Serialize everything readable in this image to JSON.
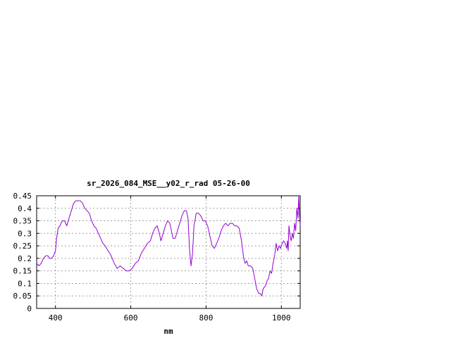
{
  "chart_data": {
    "type": "line",
    "title": "sr_2026_084_MSE__y02_r_rad 05-26-00",
    "xlabel": "nm",
    "ylabel": "",
    "xlim": [
      350,
      1050
    ],
    "ylim": [
      0,
      0.45
    ],
    "x_ticks": [
      400,
      600,
      800,
      1000
    ],
    "y_ticks": [
      0,
      0.05,
      0.1,
      0.15,
      0.2,
      0.25,
      0.3,
      0.35,
      0.4,
      0.45
    ],
    "grid": true,
    "series": [
      {
        "color": "#9400d3",
        "points": [
          [
            350,
            0.18
          ],
          [
            356,
            0.17
          ],
          [
            362,
            0.18
          ],
          [
            368,
            0.2
          ],
          [
            374,
            0.21
          ],
          [
            380,
            0.21
          ],
          [
            385,
            0.2
          ],
          [
            390,
            0.2
          ],
          [
            395,
            0.21
          ],
          [
            400,
            0.23
          ],
          [
            403,
            0.28
          ],
          [
            407,
            0.32
          ],
          [
            412,
            0.33
          ],
          [
            418,
            0.35
          ],
          [
            424,
            0.35
          ],
          [
            430,
            0.33
          ],
          [
            436,
            0.36
          ],
          [
            442,
            0.39
          ],
          [
            448,
            0.42
          ],
          [
            454,
            0.43
          ],
          [
            460,
            0.43
          ],
          [
            466,
            0.43
          ],
          [
            472,
            0.42
          ],
          [
            478,
            0.4
          ],
          [
            484,
            0.39
          ],
          [
            490,
            0.38
          ],
          [
            496,
            0.35
          ],
          [
            502,
            0.33
          ],
          [
            508,
            0.32
          ],
          [
            514,
            0.3
          ],
          [
            520,
            0.28
          ],
          [
            526,
            0.26
          ],
          [
            532,
            0.25
          ],
          [
            540,
            0.23
          ],
          [
            548,
            0.21
          ],
          [
            556,
            0.18
          ],
          [
            564,
            0.16
          ],
          [
            572,
            0.17
          ],
          [
            580,
            0.16
          ],
          [
            588,
            0.15
          ],
          [
            596,
            0.15
          ],
          [
            604,
            0.16
          ],
          [
            612,
            0.18
          ],
          [
            620,
            0.19
          ],
          [
            628,
            0.22
          ],
          [
            636,
            0.24
          ],
          [
            644,
            0.26
          ],
          [
            652,
            0.27
          ],
          [
            658,
            0.3
          ],
          [
            664,
            0.32
          ],
          [
            670,
            0.33
          ],
          [
            676,
            0.3
          ],
          [
            680,
            0.27
          ],
          [
            686,
            0.3
          ],
          [
            692,
            0.33
          ],
          [
            698,
            0.35
          ],
          [
            704,
            0.34
          ],
          [
            708,
            0.31
          ],
          [
            712,
            0.28
          ],
          [
            718,
            0.28
          ],
          [
            724,
            0.31
          ],
          [
            730,
            0.34
          ],
          [
            736,
            0.37
          ],
          [
            742,
            0.39
          ],
          [
            748,
            0.39
          ],
          [
            752,
            0.36
          ],
          [
            756,
            0.24
          ],
          [
            760,
            0.17
          ],
          [
            764,
            0.22
          ],
          [
            768,
            0.33
          ],
          [
            774,
            0.38
          ],
          [
            780,
            0.38
          ],
          [
            786,
            0.37
          ],
          [
            792,
            0.35
          ],
          [
            798,
            0.35
          ],
          [
            804,
            0.33
          ],
          [
            810,
            0.29
          ],
          [
            816,
            0.25
          ],
          [
            822,
            0.24
          ],
          [
            828,
            0.26
          ],
          [
            834,
            0.28
          ],
          [
            840,
            0.31
          ],
          [
            846,
            0.33
          ],
          [
            852,
            0.34
          ],
          [
            858,
            0.33
          ],
          [
            864,
            0.34
          ],
          [
            870,
            0.34
          ],
          [
            876,
            0.33
          ],
          [
            882,
            0.33
          ],
          [
            888,
            0.32
          ],
          [
            894,
            0.27
          ],
          [
            900,
            0.2
          ],
          [
            904,
            0.18
          ],
          [
            908,
            0.19
          ],
          [
            912,
            0.17
          ],
          [
            918,
            0.17
          ],
          [
            924,
            0.16
          ],
          [
            928,
            0.13
          ],
          [
            934,
            0.08
          ],
          [
            940,
            0.06
          ],
          [
            944,
            0.06
          ],
          [
            948,
            0.05
          ],
          [
            952,
            0.08
          ],
          [
            958,
            0.09
          ],
          [
            962,
            0.11
          ],
          [
            966,
            0.12
          ],
          [
            970,
            0.15
          ],
          [
            974,
            0.14
          ],
          [
            978,
            0.18
          ],
          [
            982,
            0.21
          ],
          [
            986,
            0.26
          ],
          [
            990,
            0.23
          ],
          [
            994,
            0.25
          ],
          [
            998,
            0.24
          ],
          [
            1002,
            0.26
          ],
          [
            1006,
            0.27
          ],
          [
            1010,
            0.26
          ],
          [
            1014,
            0.24
          ],
          [
            1016,
            0.27
          ],
          [
            1018,
            0.23
          ],
          [
            1020,
            0.33
          ],
          [
            1023,
            0.29
          ],
          [
            1026,
            0.27
          ],
          [
            1029,
            0.3
          ],
          [
            1032,
            0.28
          ],
          [
            1035,
            0.34
          ],
          [
            1038,
            0.31
          ],
          [
            1041,
            0.4
          ],
          [
            1044,
            0.36
          ],
          [
            1046,
            0.45
          ],
          [
            1048,
            0.38
          ],
          [
            1050,
            0.33
          ]
        ]
      }
    ]
  }
}
